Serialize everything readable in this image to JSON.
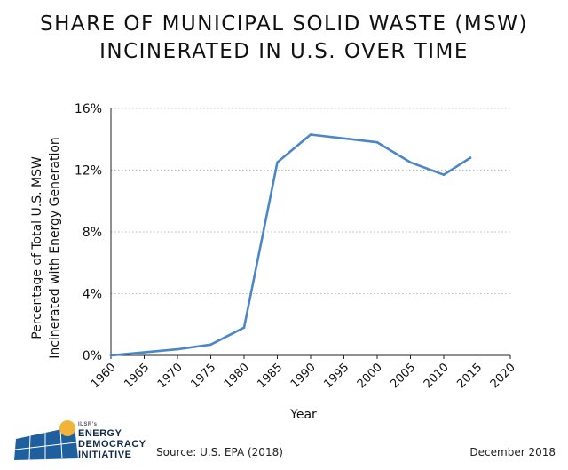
{
  "title": {
    "line1": "SHARE OF MUNICIPAL SOLID WASTE (MSW)",
    "line2": "INCINERATED IN U.S. OVER TIME"
  },
  "chart_data": {
    "type": "line",
    "title": "SHARE OF MUNICIPAL SOLID WASTE (MSW) INCINERATED IN U.S. OVER TIME",
    "xlabel": "Year",
    "ylabel_lines": [
      "Percentage of Total U.S. MSW",
      "Incinerated with Energy Generation"
    ],
    "x_ticks": [
      1960,
      1965,
      1970,
      1975,
      1980,
      1985,
      1990,
      1995,
      2000,
      2005,
      2010,
      2015,
      2020
    ],
    "x_tick_labels": [
      "1960",
      "1965",
      "1970",
      "1975",
      "1980",
      "1985",
      "1990",
      "1995",
      "2000",
      "2005",
      "2010",
      "2015",
      "2020"
    ],
    "y_ticks": [
      0,
      4,
      8,
      12,
      16
    ],
    "y_tick_labels": [
      "0%",
      "4%",
      "8%",
      "12%",
      "16%"
    ],
    "xlim": [
      1960,
      2020
    ],
    "ylim": [
      0,
      16
    ],
    "grid": "horizontal dotted",
    "series": [
      {
        "name": "Share incinerated with energy generation",
        "color": "#4a86c8",
        "x": [
          1960,
          1970,
          1975,
          1980,
          1985,
          1990,
          2000,
          2005,
          2010,
          2014
        ],
        "values": [
          0.0,
          0.4,
          0.7,
          1.8,
          12.5,
          14.3,
          13.8,
          12.5,
          11.7,
          12.8
        ]
      }
    ]
  },
  "logo": {
    "small_text": "ILSR's",
    "line1": "ENERGY",
    "line2": "DEMOCRACY",
    "line3": "INITIATIVE"
  },
  "footer": {
    "source": "Source: U.S. EPA (2018)",
    "date": "December 2018"
  }
}
